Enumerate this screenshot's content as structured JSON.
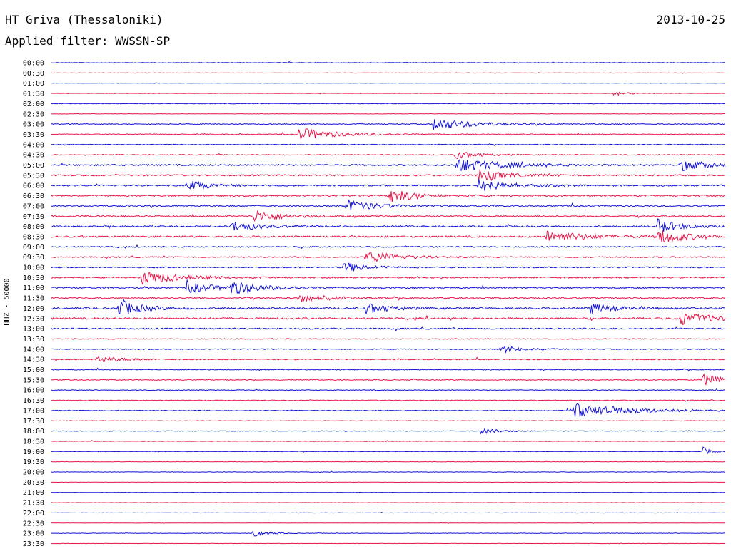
{
  "header": {
    "station": "HT Griva (Thessaloniki)",
    "date": "2013-10-25",
    "filter": "Applied filter: WWSSN-SP",
    "channel": "HHZ - 50000"
  },
  "colors": {
    "blue_trace": "#1515d6",
    "red_trace": "#e8174a",
    "label": "#000000"
  },
  "chart_data": {
    "type": "line",
    "title": "HT Griva (Thessaloniki)",
    "subtitle": "Applied filter: WWSSN-SP",
    "ylabel": "HHZ - 50000",
    "xlabel": "",
    "row_labels": [
      "00:00",
      "00:30",
      "01:00",
      "01:30",
      "02:00",
      "02:30",
      "03:00",
      "03:30",
      "04:00",
      "04:30",
      "05:00",
      "05:30",
      "06:00",
      "06:30",
      "07:00",
      "07:30",
      "08:00",
      "08:30",
      "09:00",
      "09:30",
      "10:00",
      "10:30",
      "11:00",
      "11:30",
      "12:00",
      "12:30",
      "13:00",
      "13:30",
      "14:00",
      "14:30",
      "15:00",
      "15:30",
      "16:00",
      "16:30",
      "17:00",
      "17:30",
      "18:00",
      "18:30",
      "19:00",
      "19:30",
      "20:00",
      "20:30",
      "21:00",
      "21:30",
      "22:00",
      "22:30",
      "23:00",
      "23:30"
    ],
    "row_colors": [
      "blue",
      "red"
    ],
    "minutes_per_row": 30,
    "noise": [
      0.4,
      0.3,
      0.2,
      0.2,
      0.4,
      0.3,
      0.6,
      0.6,
      0.5,
      0.6,
      1.0,
      1.0,
      1.0,
      1.0,
      0.9,
      0.9,
      1.0,
      1.1,
      0.8,
      0.8,
      0.8,
      0.9,
      0.9,
      0.9,
      1.2,
      1.2,
      0.9,
      0.6,
      0.6,
      0.7,
      0.6,
      0.6,
      0.5,
      0.5,
      0.5,
      0.4,
      0.4,
      0.3,
      0.3,
      0.3,
      0.3,
      0.2,
      0.2,
      0.2,
      0.2,
      0.2,
      0.3,
      0.2
    ],
    "events": [
      {
        "row": 3,
        "minute": 25,
        "amp": 4,
        "dur": 1.0
      },
      {
        "row": 6,
        "minute": 17,
        "amp": 9,
        "dur": 2.5
      },
      {
        "row": 7,
        "minute": 11,
        "amp": 9,
        "dur": 2.5
      },
      {
        "row": 9,
        "minute": 18,
        "amp": 6,
        "dur": 1.5
      },
      {
        "row": 10,
        "minute": 18,
        "amp": 10,
        "dur": 3
      },
      {
        "row": 10,
        "minute": 28,
        "amp": 8,
        "dur": 2
      },
      {
        "row": 11,
        "minute": 19,
        "amp": 8,
        "dur": 2
      },
      {
        "row": 12,
        "minute": 6,
        "amp": 8,
        "dur": 1.5
      },
      {
        "row": 12,
        "minute": 19,
        "amp": 9,
        "dur": 2
      },
      {
        "row": 13,
        "minute": 15,
        "amp": 9,
        "dur": 2
      },
      {
        "row": 14,
        "minute": 13,
        "amp": 9,
        "dur": 2
      },
      {
        "row": 15,
        "minute": 9,
        "amp": 8,
        "dur": 2
      },
      {
        "row": 16,
        "minute": 8,
        "amp": 7,
        "dur": 2
      },
      {
        "row": 16,
        "minute": 27,
        "amp": 10,
        "dur": 1.5
      },
      {
        "row": 17,
        "minute": 22,
        "amp": 8,
        "dur": 3
      },
      {
        "row": 17,
        "minute": 27,
        "amp": 10,
        "dur": 2
      },
      {
        "row": 19,
        "minute": 14,
        "amp": 9,
        "dur": 2
      },
      {
        "row": 20,
        "minute": 13,
        "amp": 8,
        "dur": 1.5
      },
      {
        "row": 21,
        "minute": 4,
        "amp": 10,
        "dur": 2.5
      },
      {
        "row": 22,
        "minute": 6,
        "amp": 8,
        "dur": 2
      },
      {
        "row": 22,
        "minute": 8,
        "amp": 9,
        "dur": 2
      },
      {
        "row": 23,
        "minute": 11,
        "amp": 6,
        "dur": 2
      },
      {
        "row": 24,
        "minute": 3,
        "amp": 12,
        "dur": 1.5
      },
      {
        "row": 24,
        "minute": 14,
        "amp": 8,
        "dur": 1.5
      },
      {
        "row": 24,
        "minute": 24,
        "amp": 8,
        "dur": 1.5
      },
      {
        "row": 25,
        "minute": 28,
        "amp": 10,
        "dur": 2
      },
      {
        "row": 28,
        "minute": 20,
        "amp": 5,
        "dur": 1.5
      },
      {
        "row": 29,
        "minute": 2,
        "amp": 5,
        "dur": 1.5
      },
      {
        "row": 31,
        "minute": 29,
        "amp": 8,
        "dur": 1.5
      },
      {
        "row": 34,
        "minute": 23,
        "amp": 11,
        "dur": 4
      },
      {
        "row": 36,
        "minute": 19,
        "amp": 4,
        "dur": 1.5
      },
      {
        "row": 38,
        "minute": 29,
        "amp": 6,
        "dur": 0.5
      },
      {
        "row": 46,
        "minute": 9,
        "amp": 6,
        "dur": 0.8
      }
    ]
  }
}
